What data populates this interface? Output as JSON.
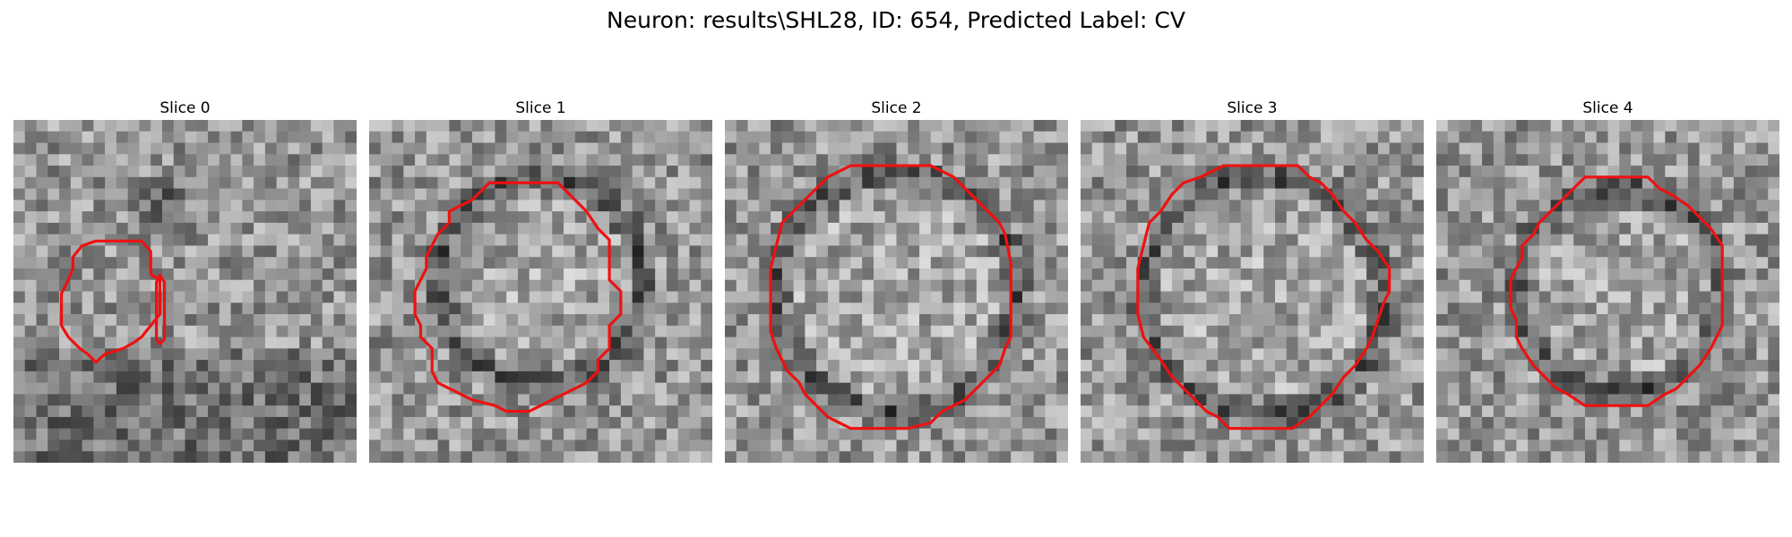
{
  "figure": {
    "title": "Neuron: results\\SHL28, ID: 654, Predicted Label: CV"
  },
  "panels": [
    {
      "title": "Slice 0"
    },
    {
      "title": "Slice 1"
    },
    {
      "title": "Slice 2"
    },
    {
      "title": "Slice 3"
    },
    {
      "title": "Slice 4"
    }
  ],
  "colors": {
    "contour": "#ee1111",
    "background": "#ffffff",
    "image_colormap": "grayscale"
  }
}
